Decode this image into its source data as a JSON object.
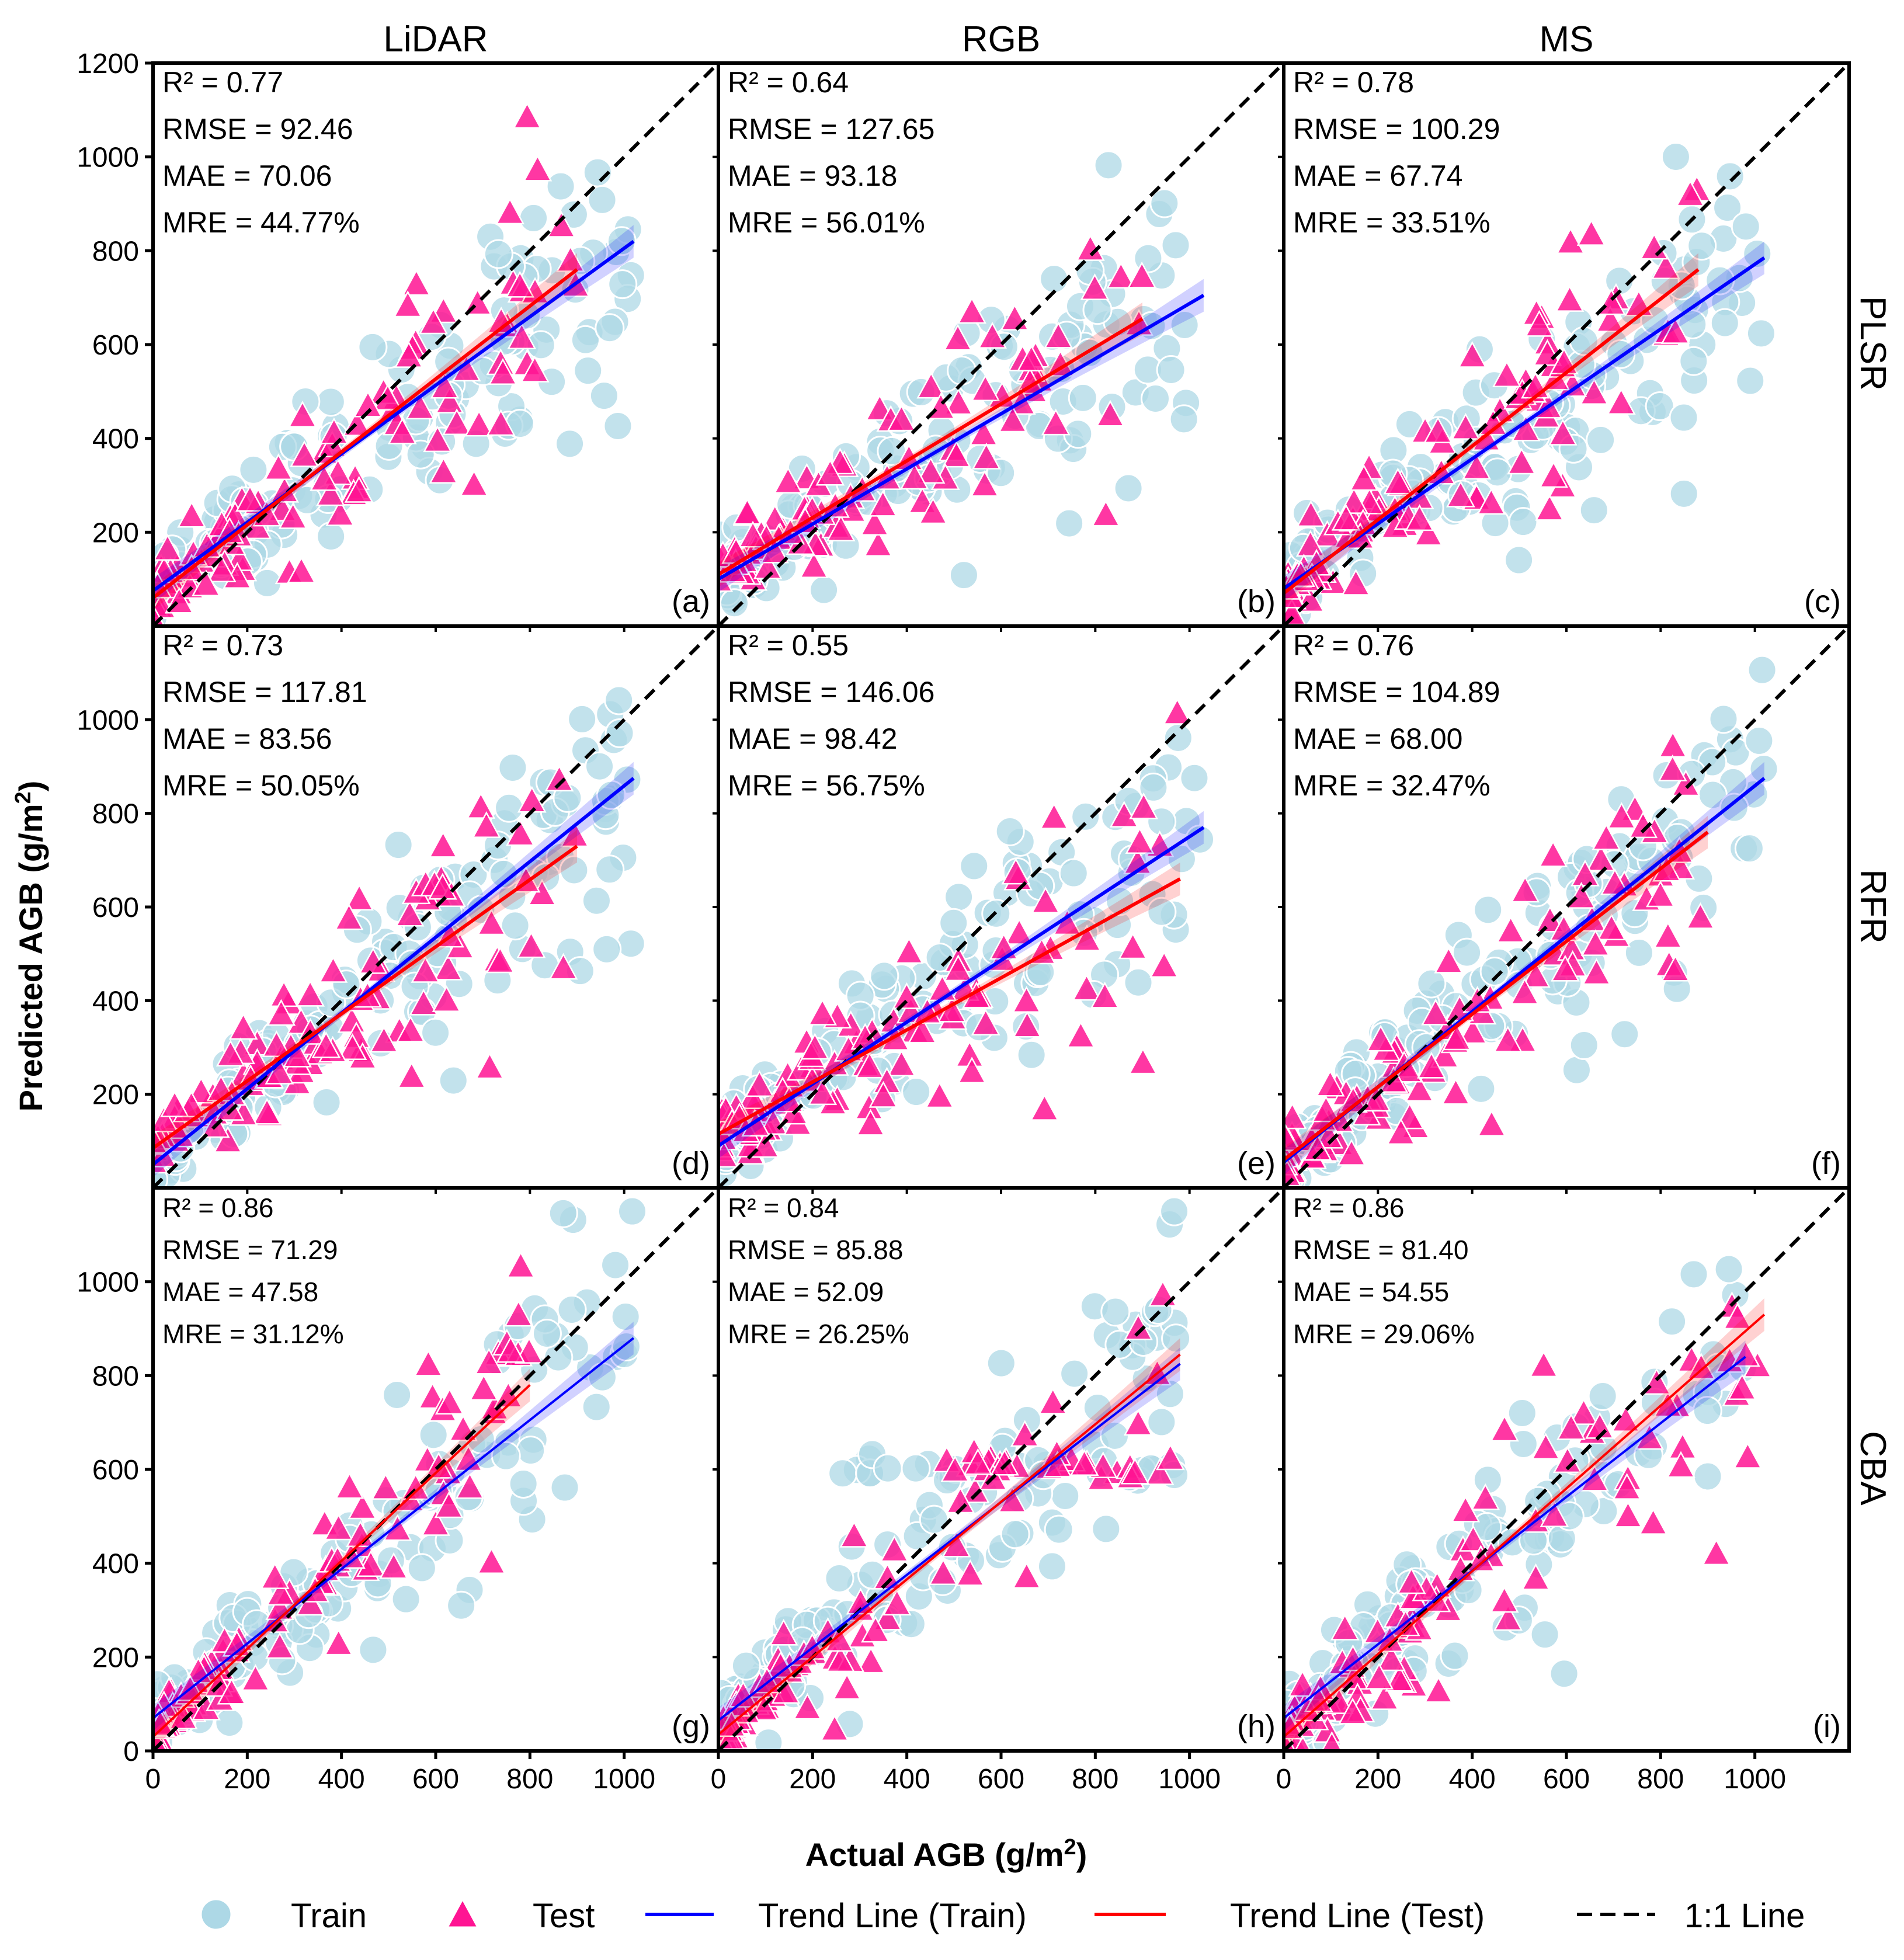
{
  "chart_data": {
    "type": "scatter",
    "columns": [
      "LiDAR",
      "RGB",
      "MS"
    ],
    "rows": [
      "PLSR",
      "RFR",
      "CBA"
    ],
    "xlabel_main": "Actual AGB (g/m",
    "xlabel_sup": "2",
    "xlabel_end": ")",
    "ylabel_main": "Predicted AGB (g/m",
    "ylabel_sup": "2",
    "ylabel_end": ")",
    "xlim": [
      0,
      1200
    ],
    "ylim": [
      0,
      1200
    ],
    "xticks": [
      0,
      200,
      400,
      600,
      800,
      1000
    ],
    "xtick_labels": [
      "0",
      "200",
      "400",
      "600",
      "800",
      "1000"
    ],
    "yticks": [
      200,
      400,
      600,
      800,
      1000,
      1200
    ],
    "ytick_labels": [
      "200",
      "400",
      "600",
      "800",
      "1000",
      "1200"
    ],
    "ytick_labels_lower": [
      "200",
      "400",
      "600",
      "800",
      "1000"
    ],
    "ytick_zero": "0",
    "legend": {
      "train": "Train",
      "test": "Test",
      "trend_train": "Trend Line (Train)",
      "trend_test": "Trend Line (Test)",
      "one_to_one": "1:1 Line"
    },
    "colors": {
      "train": "#add8e6",
      "test": "#ff1493",
      "trend_train": "#0000ff",
      "trend_test": "#ff0000",
      "one_to_one": "#000000"
    },
    "panels": [
      {
        "id": "a",
        "label": "(a)",
        "stats": [
          "R²   = 0.77",
          "RMSE = 92.46",
          "MAE  = 70.06",
          "MRE  = 44.77%"
        ],
        "train_trend": {
          "x": [
            0,
            1020
          ],
          "y": [
            75,
            820
          ]
        },
        "test_trend": {
          "x": [
            0,
            900
          ],
          "y": [
            60,
            760
          ]
        }
      },
      {
        "id": "b",
        "label": "(b)",
        "stats": [
          "R²   = 0.64",
          "RMSE = 127.65",
          "MAE  = 93.18",
          "MRE  = 56.01%"
        ],
        "train_trend": {
          "x": [
            0,
            1030
          ],
          "y": [
            100,
            705
          ]
        },
        "test_trend": {
          "x": [
            0,
            900
          ],
          "y": [
            110,
            655
          ]
        }
      },
      {
        "id": "c",
        "label": "(c)",
        "stats": [
          "R²   = 0.78",
          "RMSE = 100.29",
          "MAE  = 67.74",
          "MRE  = 33.51%"
        ],
        "train_trend": {
          "x": [
            0,
            1020
          ],
          "y": [
            80,
            785
          ]
        },
        "test_trend": {
          "x": [
            0,
            880
          ],
          "y": [
            70,
            760
          ]
        }
      },
      {
        "id": "d",
        "label": "(d)",
        "stats": [
          "R²   = 0.73",
          "RMSE = 117.81",
          "MAE  = 83.56",
          "MRE  = 50.05%"
        ],
        "train_trend": {
          "x": [
            0,
            1020
          ],
          "y": [
            50,
            875
          ]
        },
        "test_trend": {
          "x": [
            0,
            900
          ],
          "y": [
            85,
            730
          ]
        }
      },
      {
        "id": "e",
        "label": "(e)",
        "stats": [
          "R²   = 0.55",
          "RMSE = 146.06",
          "MAE  = 98.42",
          "MRE  = 56.75%"
        ],
        "train_trend": {
          "x": [
            0,
            1030
          ],
          "y": [
            90,
            770
          ]
        },
        "test_trend": {
          "x": [
            0,
            980
          ],
          "y": [
            115,
            660
          ]
        }
      },
      {
        "id": "f",
        "label": "(f)",
        "stats": [
          "R²   = 0.76",
          "RMSE = 104.89",
          "MAE  = 68.00",
          "MRE  = 32.47%"
        ],
        "train_trend": {
          "x": [
            0,
            1020
          ],
          "y": [
            55,
            875
          ]
        },
        "test_trend": {
          "x": [
            0,
            900
          ],
          "y": [
            60,
            760
          ]
        }
      },
      {
        "id": "g",
        "label": "(g)",
        "stats": [
          "R² = 0.86",
          "RMSE = 71.29",
          "MAE = 47.58",
          "MRE = 31.12%"
        ],
        "train_trend": {
          "x": [
            0,
            1020
          ],
          "y": [
            70,
            880
          ]
        },
        "test_trend": {
          "x": [
            0,
            800
          ],
          "y": [
            30,
            780
          ]
        }
      },
      {
        "id": "h",
        "label": "(h)",
        "stats": [
          "R² = 0.84",
          "RMSE = 85.88",
          "MAE = 52.09",
          "MRE = 26.25%"
        ],
        "train_trend": {
          "x": [
            0,
            980
          ],
          "y": [
            65,
            825
          ]
        },
        "test_trend": {
          "x": [
            0,
            980
          ],
          "y": [
            35,
            845
          ]
        }
      },
      {
        "id": "i",
        "label": "(i)",
        "stats": [
          "R² = 0.86",
          "RMSE = 81.40",
          "MAE = 54.55",
          "MRE = 29.06%"
        ],
        "train_trend": {
          "x": [
            0,
            980
          ],
          "y": [
            70,
            840
          ]
        },
        "test_trend": {
          "x": [
            0,
            1020
          ],
          "y": [
            30,
            930
          ]
        }
      }
    ]
  }
}
